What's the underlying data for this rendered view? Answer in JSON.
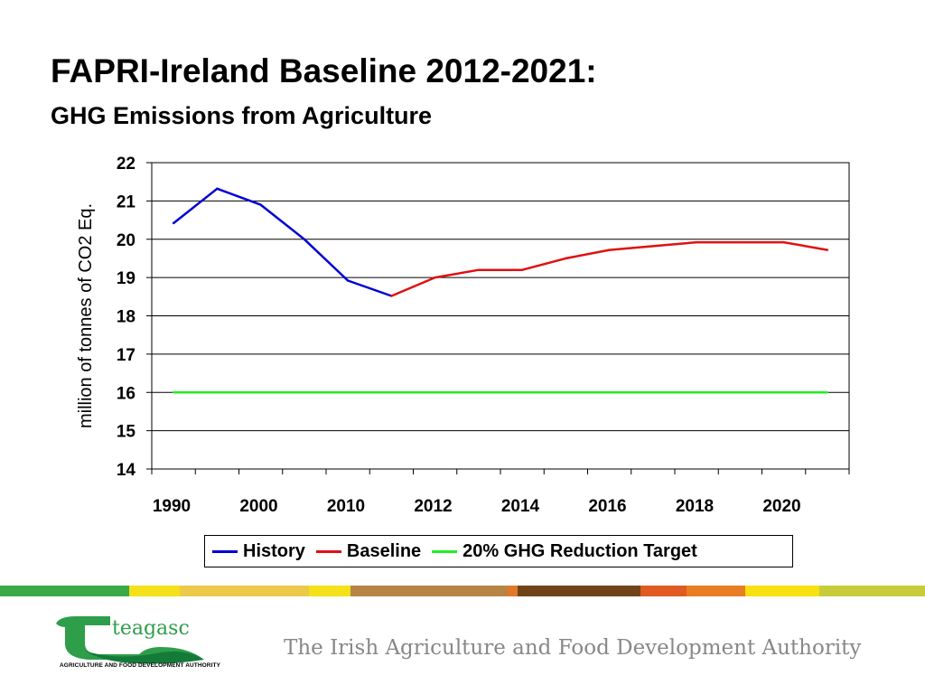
{
  "header": {
    "title": "FAPRI-Ireland Baseline 2012-2021:",
    "subtitle": "GHG Emissions from Agriculture"
  },
  "chart_data": {
    "type": "line",
    "ylabel": "million of tonnes of CO2 Eq.",
    "xlabel": "",
    "ylim": [
      14,
      22
    ],
    "yticks": [
      14,
      15,
      16,
      17,
      18,
      19,
      20,
      21,
      22
    ],
    "categories": [
      "1990",
      "",
      "2000",
      "",
      "2010",
      "",
      "2012",
      "",
      "2014",
      "",
      "2016",
      "",
      "2018",
      "",
      "2020",
      ""
    ],
    "grid": true,
    "legend_position": "bottom",
    "series": [
      {
        "name": "History",
        "color": "#0000d4",
        "values": [
          20.42,
          21.32,
          20.9,
          20.0,
          18.92,
          18.52,
          null,
          null,
          null,
          null,
          null,
          null,
          null,
          null,
          null,
          null
        ]
      },
      {
        "name": "Baseline",
        "color": "#e01010",
        "values": [
          null,
          null,
          null,
          null,
          null,
          18.52,
          19.0,
          19.2,
          19.2,
          19.5,
          19.72,
          19.82,
          19.92,
          19.92,
          19.92,
          19.72
        ]
      },
      {
        "name": "20% GHG Reduction Target",
        "color": "#22ee22",
        "values": [
          16.0,
          16.0,
          16.0,
          16.0,
          16.0,
          16.0,
          16.0,
          16.0,
          16.0,
          16.0,
          16.0,
          16.0,
          16.0,
          16.0,
          16.0,
          16.0
        ]
      }
    ]
  },
  "footer": {
    "logo_text": "teagasc",
    "logo_caption": "AGRICULTURE AND FOOD DEVELOPMENT AUTHORITY",
    "authority": "The Irish Agriculture and Food Development Authority",
    "strip_colors": [
      "#3aaa48",
      "#f4e11a",
      "#ecc94a",
      "#f4e11a",
      "#b88446",
      "#e0782a",
      "#6e4418",
      "#e05a22",
      "#e87e22",
      "#f8e012",
      "#c8cc38"
    ]
  }
}
